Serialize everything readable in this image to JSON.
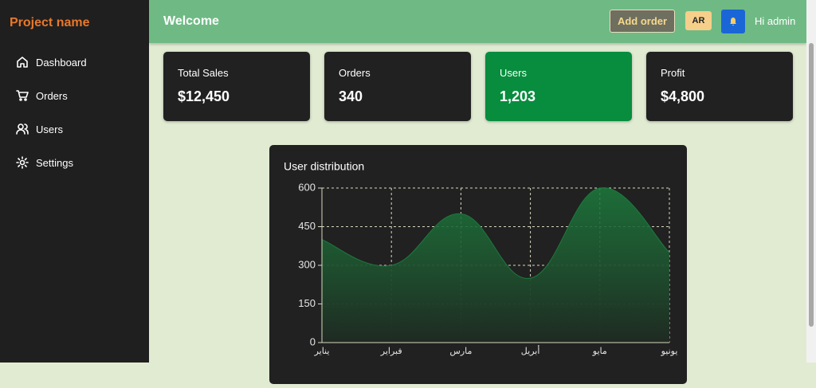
{
  "sidebar": {
    "title": "Project name",
    "items": [
      "Dashboard",
      "Orders",
      "Users",
      "Settings"
    ]
  },
  "header": {
    "title": "Welcome",
    "button": "Add order",
    "language": "AR",
    "greeting": "Hi admin"
  },
  "cards": [
    {
      "label": "Total Sales",
      "value": "$12,450"
    },
    {
      "label": "Orders",
      "value": "340"
    },
    {
      "label": "Users",
      "value": "1,203"
    },
    {
      "label": "Profit",
      "value": "$4,800"
    }
  ],
  "chart_data": {
    "type": "area",
    "title": "User distribution",
    "categories": [
      "يناير",
      "فبراير",
      "مارس",
      "أبريل",
      "مايو",
      "يونيو"
    ],
    "series": [
      {
        "color": "#1c7a3c",
        "values": [
          400,
          300,
          500,
          250,
          600,
          350
        ]
      }
    ],
    "ylim": [
      0,
      600
    ],
    "yticks": [
      0,
      150,
      300,
      450,
      600
    ],
    "grid": true
  }
}
